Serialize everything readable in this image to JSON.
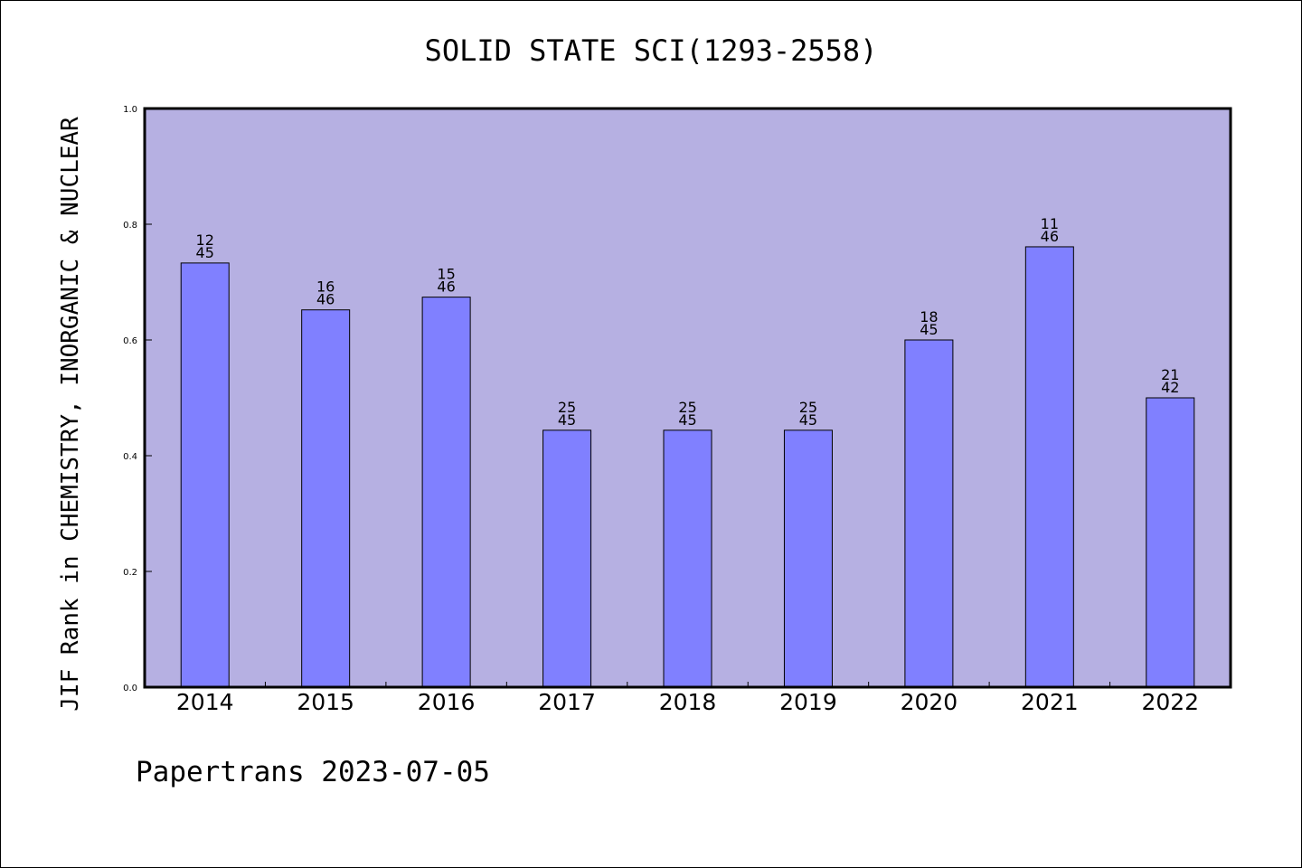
{
  "chart_data": {
    "type": "bar",
    "title": "SOLID STATE SCI(1293-2558)",
    "ylabel": "JIF Rank in CHEMISTRY, INORGANIC & NUCLEAR",
    "xlabel": "",
    "ylim": [
      0.0,
      1.0
    ],
    "yticks": [
      "0.0",
      "0.2",
      "0.4",
      "0.6",
      "0.8",
      "1.0"
    ],
    "categories": [
      "2014",
      "2015",
      "2016",
      "2017",
      "2018",
      "2019",
      "2020",
      "2021",
      "2022"
    ],
    "values": [
      0.733,
      0.652,
      0.674,
      0.444,
      0.444,
      0.444,
      0.6,
      0.761,
      0.5
    ],
    "rank_labels": [
      {
        "rank": "12",
        "total": "45"
      },
      {
        "rank": "16",
        "total": "46"
      },
      {
        "rank": "15",
        "total": "46"
      },
      {
        "rank": "25",
        "total": "45"
      },
      {
        "rank": "25",
        "total": "45"
      },
      {
        "rank": "25",
        "total": "45"
      },
      {
        "rank": "18",
        "total": "45"
      },
      {
        "rank": "11",
        "total": "46"
      },
      {
        "rank": "21",
        "total": "42"
      }
    ],
    "grid": false,
    "colors": {
      "plot_background": "#b6b0e2",
      "bar_fill": "#8080ff",
      "bar_stroke": "#000000"
    }
  },
  "footer": "Papertrans 2023-07-05"
}
